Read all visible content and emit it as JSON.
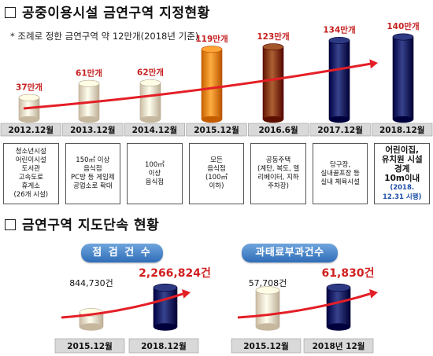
{
  "section1": {
    "title": "공중이용시설 금연구역 지정현황",
    "note": "* 조례로 정한 금연구역 약 12만개(2018년 기준)"
  },
  "section2": {
    "title": "금연구역 지도단속 현황"
  },
  "chart_data": [
    {
      "type": "bar",
      "title": "공중이용시설 금연구역 지정현황",
      "categories": [
        "2012.12월",
        "2013.12월",
        "2014.12월",
        "2015.12월",
        "2016.6월",
        "2017.12월",
        "2018.12월"
      ],
      "values": [
        37,
        61,
        62,
        119,
        123,
        134,
        140
      ],
      "value_labels": [
        "37만개",
        "61만개",
        "62만개",
        "119만개",
        "123만개",
        "134만개",
        "140만개"
      ],
      "unit": "만개",
      "descriptions": [
        "청소년시설\n어린이시설\n도서관\n고속도로\n휴게소\n(26개 시설)",
        "150㎡ 이상\n음식점\nPC방 등 게임제\n공업소로 확대",
        "100㎡\n이상\n음식점",
        "모든\n음식점\n(100㎡\n이하)",
        "공동주택\n(계단, 복도, 엘\n리베이터, 지하\n주차장)",
        "당구장,\n실내골프장 등\n실내 체육시설",
        "어린이집,\n유치원 시설\n경계\n10m이내"
      ],
      "description_last_note": "(2018.\n12.31 시행)",
      "colors": [
        "#f3e4cc",
        "#f3e4cc",
        "#f3e4cc",
        "#f08a1c",
        "#8a3d10",
        "#14206a",
        "#14206a"
      ]
    },
    {
      "type": "bar",
      "title": "점 검 건 수",
      "categories": [
        "2015.12월",
        "2018.12월"
      ],
      "values": [
        844730,
        2266824
      ],
      "value_labels": [
        "844,730건",
        "2,266,824건"
      ],
      "colors": [
        "#f3e4cc",
        "#14206a"
      ]
    },
    {
      "type": "bar",
      "title": "과태료부과건수",
      "categories": [
        "2015.12월",
        "2018년 12월"
      ],
      "values": [
        57708,
        61830
      ],
      "value_labels": [
        "57,708건",
        "61,830건"
      ],
      "colors": [
        "#f3e4cc",
        "#14206a"
      ]
    }
  ]
}
